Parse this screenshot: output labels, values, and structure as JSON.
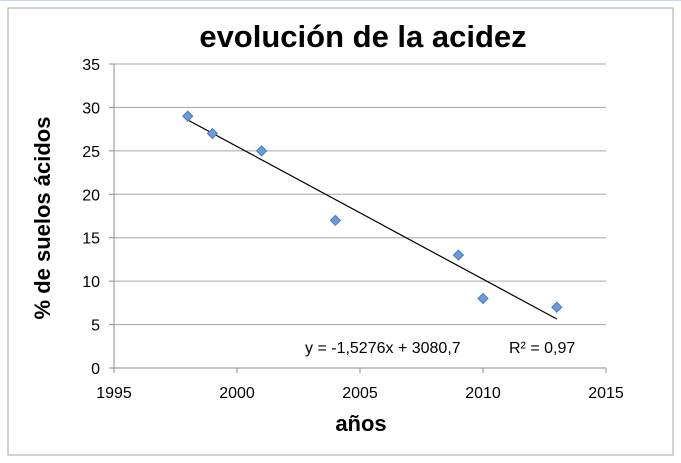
{
  "chart_data": {
    "type": "scatter",
    "title": "evolución de la acidez",
    "xlabel": "años",
    "ylabel": "% de suelos ácidos",
    "xlim": [
      1995,
      2015
    ],
    "ylim": [
      0,
      35
    ],
    "xticks": [
      "1995",
      "2000",
      "2005",
      "2010",
      "2015"
    ],
    "yticks": [
      "0",
      "5",
      "10",
      "15",
      "20",
      "25",
      "30",
      "35"
    ],
    "grid": "horizontal",
    "legend": "none",
    "series": [
      {
        "x": [
          1998,
          1999,
          2001,
          2004,
          2009,
          2010,
          2013
        ],
        "y": [
          29,
          27,
          25,
          17,
          13,
          8,
          7
        ],
        "marker": "diamond",
        "color": "#6a9bd8"
      }
    ],
    "trendline": {
      "type": "linear",
      "slope": -1.5276,
      "intercept": 3080.7,
      "x_range": [
        1998,
        2013
      ],
      "equation": "y = -1,5276x + 3080,7",
      "r2_label": "R² = 0,97"
    }
  }
}
